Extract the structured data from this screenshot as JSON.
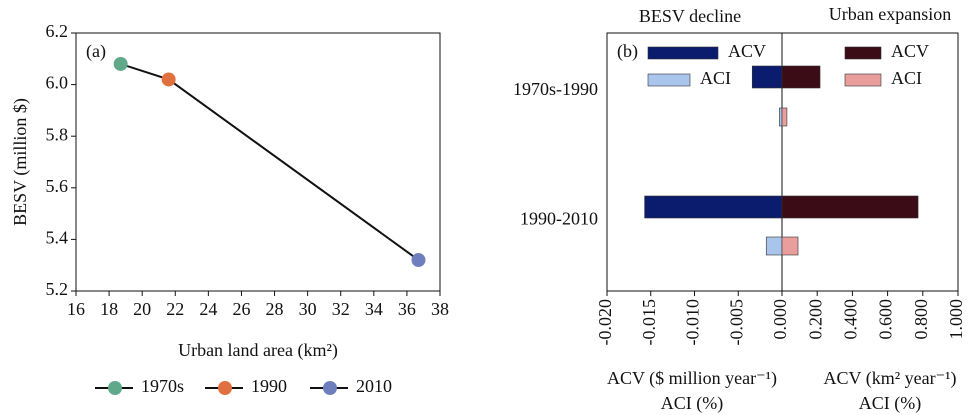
{
  "chart_data": [
    {
      "type": "line",
      "panel_label": "(a)",
      "x_label": "Urban land area (km²)",
      "y_label": "BESV (million $)",
      "points": [
        {
          "name": "1970s",
          "x": 18.7,
          "y": 6.08,
          "color": "#5fa88a"
        },
        {
          "name": "1990",
          "x": 21.6,
          "y": 6.02,
          "color": "#e0703f"
        },
        {
          "name": "2010",
          "x": 36.7,
          "y": 5.32,
          "color": "#6f7fbd"
        }
      ],
      "line_color": "#111111",
      "xlim": [
        16,
        38
      ],
      "xticks": [
        16,
        18,
        20,
        22,
        24,
        26,
        28,
        30,
        32,
        34,
        36,
        38
      ],
      "ylim": [
        5.2,
        6.2
      ],
      "yticks": [
        5.2,
        5.4,
        5.6,
        5.8,
        {
          "value": 6,
          "label": "6.0"
        },
        6.2
      ]
    },
    {
      "type": "hbar",
      "panel_label": "(b)",
      "left_header": "BESV decline",
      "right_header": "Urban expansion",
      "categories": [
        "1970s-1990",
        "1990-2010"
      ],
      "series": [
        {
          "name": "ACV",
          "color": "#0b1b6e",
          "axis": "x",
          "values": [
            -0.0034,
            -0.0157
          ]
        },
        {
          "name": "ACI",
          "color": "#a9c5ec",
          "axis": "x",
          "values": [
            -0.0003,
            -0.0018
          ]
        },
        {
          "name": "ACV",
          "color": "#3b0b16",
          "axis": "x2",
          "values": [
            0.216,
            0.773
          ]
        },
        {
          "name": "ACI",
          "color": "#e99d9d",
          "axis": "x2",
          "values": [
            0.028,
            0.091
          ]
        }
      ],
      "xlim": [
        -0.02,
        0
      ],
      "xticks": [
        {
          "value": -0.02,
          "label": "-0.020"
        },
        {
          "value": -0.015,
          "label": "-0.015"
        },
        {
          "value": -0.01,
          "label": "-0.010"
        },
        {
          "value": -0.005,
          "label": "-0.005"
        },
        {
          "value": 0,
          "label": "0.000"
        }
      ],
      "x2lim": [
        0,
        1
      ],
      "x2ticks": [
        {
          "value": 0.2,
          "label": "0.200"
        },
        {
          "value": 0.4,
          "label": "0.400"
        },
        {
          "value": 0.6,
          "label": "0.600"
        },
        {
          "value": 0.8,
          "label": "0.800"
        },
        {
          "value": 1,
          "label": "1.000"
        }
      ],
      "x_label_left": [
        "ACV ($ million year⁻¹)",
        "ACI (%)"
      ],
      "x_label_right": [
        "ACV (km² year⁻¹)",
        "ACI (%)"
      ]
    }
  ]
}
